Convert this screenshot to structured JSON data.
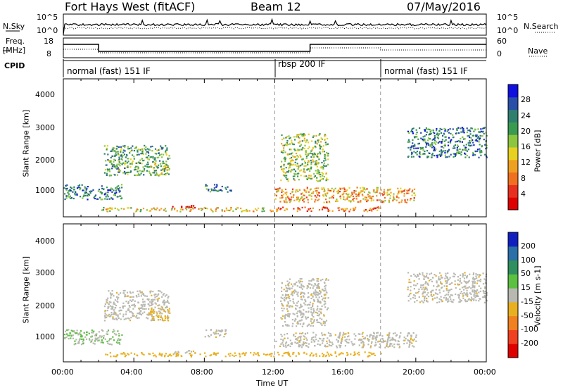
{
  "header": {
    "radar": "Fort Hays West (fitACF)",
    "beam": "Beam 12",
    "date": "07/May/2016"
  },
  "top_panels": {
    "nsky_label": "N.Sky",
    "nsearch_label": "N.Search",
    "noise_ticks_left": [
      "10^5",
      "10^0"
    ],
    "noise_ticks_right": [
      "10^5",
      "10^0"
    ],
    "freq_label": "Freq. [MHz]",
    "freq_label_line1": "Freq.",
    "freq_label_line2": "[MHz]",
    "freq_ticks": [
      "18",
      "8"
    ],
    "nave_label": "Nave",
    "nave_ticks": [
      "60",
      "0"
    ],
    "cpid_label": "CPID",
    "cpid_segments": [
      {
        "label": "normal (fast) 151 IF",
        "start_hour": 0
      },
      {
        "label": "rbsp 200 IF",
        "start_hour": 12
      },
      {
        "label": "normal (fast) 151 IF",
        "start_hour": 18
      }
    ]
  },
  "chart_data": [
    {
      "type": "heatmap",
      "name": "power",
      "ylabel": "Slant Range [km]",
      "yticks": [
        "4000",
        "3000",
        "2000",
        "1000"
      ],
      "colorbar_label": "Power [dB]",
      "colorbar_ticks": [
        "28",
        "24",
        "20",
        "16",
        "12",
        "8",
        "4"
      ],
      "colors": [
        "#1010e0",
        "#2a4fa8",
        "#2f7f6e",
        "#3a9a50",
        "#8cc63f",
        "#e8d020",
        "#f0a020",
        "#f07020",
        "#e83020",
        "#e00000"
      ]
    },
    {
      "type": "heatmap",
      "name": "velocity",
      "ylabel": "Slant Range [km]",
      "yticks": [
        "4000",
        "3000",
        "2000",
        "1000"
      ],
      "colorbar_label": "Velocity [m s-1]",
      "colorbar_ticks": [
        "200",
        "100",
        "50",
        "15",
        "-15",
        "-50",
        "-100",
        "-200"
      ],
      "colors": [
        "#1020c0",
        "#2a6fa8",
        "#2f8f5e",
        "#5cc040",
        "#b8b8b0",
        "#e8b020",
        "#f08020",
        "#f04020",
        "#e00000"
      ]
    }
  ],
  "x_axis": {
    "label": "Time UT",
    "ticks": [
      "00:00",
      "04:00",
      "08:00",
      "12:00",
      "16:00",
      "20:00",
      "00:00"
    ],
    "range_hours": [
      0,
      24
    ]
  }
}
